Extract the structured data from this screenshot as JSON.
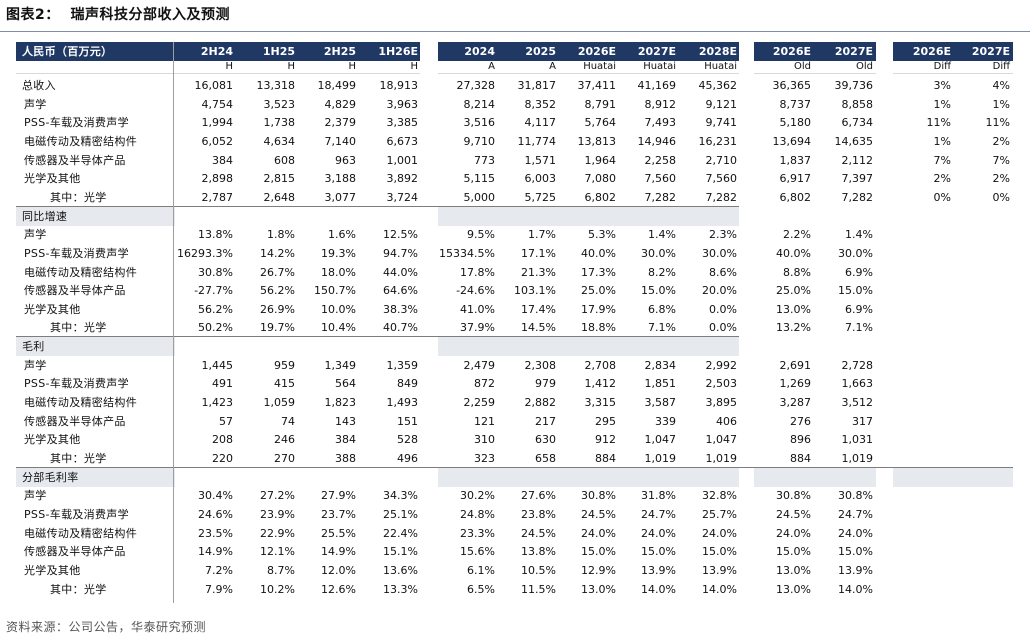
{
  "title": "图表2：  瑞声科技分部收入及预测",
  "source": "资料来源：公司公告，华泰研究预测",
  "header": {
    "label": "人民币（百万元）",
    "columns": [
      "2H24",
      "1H25",
      "2H25",
      "1H26E",
      "2024",
      "2025",
      "2026E",
      "2027E",
      "2028E",
      "2026E",
      "2027E",
      "2026E",
      "2027E"
    ],
    "subheaders": [
      "H",
      "H",
      "H",
      "H",
      "A",
      "A",
      "Huatai",
      "Huatai",
      "Huatai",
      "Old",
      "Old",
      "Diff",
      "Diff"
    ]
  },
  "rows": [
    {
      "label": "总收入",
      "type": "data",
      "indent": 0,
      "values": [
        "16,081",
        "13,318",
        "18,499",
        "18,913",
        "27,328",
        "31,817",
        "37,411",
        "41,169",
        "45,362",
        "36,365",
        "39,736",
        "3%",
        "4%"
      ]
    },
    {
      "label": "声学",
      "type": "data",
      "indent": 1,
      "values": [
        "4,754",
        "3,523",
        "4,829",
        "3,963",
        "8,214",
        "8,352",
        "8,791",
        "8,912",
        "9,121",
        "8,737",
        "8,858",
        "1%",
        "1%"
      ]
    },
    {
      "label": "PSS-车载及消费声学",
      "type": "data",
      "indent": 1,
      "values": [
        "1,994",
        "1,738",
        "2,379",
        "3,385",
        "3,516",
        "4,117",
        "5,764",
        "7,493",
        "9,741",
        "5,180",
        "6,734",
        "11%",
        "11%"
      ]
    },
    {
      "label": "电磁传动及精密结构件",
      "type": "data",
      "indent": 1,
      "values": [
        "6,052",
        "4,634",
        "7,140",
        "6,673",
        "9,710",
        "11,774",
        "13,813",
        "14,946",
        "16,231",
        "13,694",
        "14,635",
        "1%",
        "2%"
      ]
    },
    {
      "label": "传感器及半导体产品",
      "type": "data",
      "indent": 1,
      "values": [
        "384",
        "608",
        "963",
        "1,001",
        "773",
        "1,571",
        "1,964",
        "2,258",
        "2,710",
        "1,837",
        "2,112",
        "7%",
        "7%"
      ]
    },
    {
      "label": "光学及其他",
      "type": "data",
      "indent": 1,
      "values": [
        "2,898",
        "2,815",
        "3,188",
        "3,892",
        "5,115",
        "6,003",
        "7,080",
        "7,560",
        "7,560",
        "6,917",
        "7,397",
        "2%",
        "2%"
      ]
    },
    {
      "label": "其中：光学",
      "type": "data",
      "indent": 2,
      "values": [
        "2,787",
        "2,648",
        "3,077",
        "3,724",
        "5,000",
        "5,725",
        "6,802",
        "7,282",
        "7,282",
        "6,802",
        "7,282",
        "0%",
        "0%"
      ]
    },
    {
      "label": "同比增速",
      "type": "section",
      "span": 9
    },
    {
      "label": "声学",
      "type": "data",
      "indent": 1,
      "values": [
        "13.8%",
        "1.8%",
        "1.6%",
        "12.5%",
        "9.5%",
        "1.7%",
        "5.3%",
        "1.4%",
        "2.3%",
        "2.2%",
        "1.4%",
        "",
        ""
      ]
    },
    {
      "label": "PSS-车载及消费声学",
      "type": "data",
      "indent": 1,
      "values": [
        "16293.3%",
        "14.2%",
        "19.3%",
        "94.7%",
        "15334.5%",
        "17.1%",
        "40.0%",
        "30.0%",
        "30.0%",
        "40.0%",
        "30.0%",
        "",
        ""
      ]
    },
    {
      "label": "电磁传动及精密结构件",
      "type": "data",
      "indent": 1,
      "values": [
        "30.8%",
        "26.7%",
        "18.0%",
        "44.0%",
        "17.8%",
        "21.3%",
        "17.3%",
        "8.2%",
        "8.6%",
        "8.8%",
        "6.9%",
        "",
        ""
      ]
    },
    {
      "label": "传感器及半导体产品",
      "type": "data",
      "indent": 1,
      "values": [
        "-27.7%",
        "56.2%",
        "150.7%",
        "64.6%",
        "-24.6%",
        "103.1%",
        "25.0%",
        "15.0%",
        "20.0%",
        "25.0%",
        "15.0%",
        "",
        ""
      ]
    },
    {
      "label": "光学及其他",
      "type": "data",
      "indent": 1,
      "values": [
        "56.2%",
        "26.9%",
        "10.0%",
        "38.3%",
        "41.0%",
        "17.4%",
        "17.9%",
        "6.8%",
        "0.0%",
        "13.0%",
        "6.9%",
        "",
        ""
      ]
    },
    {
      "label": "其中：光学",
      "type": "data",
      "indent": 2,
      "values": [
        "50.2%",
        "19.7%",
        "10.4%",
        "40.7%",
        "37.9%",
        "14.5%",
        "18.8%",
        "7.1%",
        "0.0%",
        "13.2%",
        "7.1%",
        "",
        ""
      ]
    },
    {
      "label": "毛利",
      "type": "section",
      "span": 9
    },
    {
      "label": "声学",
      "type": "data",
      "indent": 1,
      "values": [
        "1,445",
        "959",
        "1,349",
        "1,359",
        "2,479",
        "2,308",
        "2,708",
        "2,834",
        "2,992",
        "2,691",
        "2,728",
        "",
        ""
      ]
    },
    {
      "label": "PSS-车载及消费声学",
      "type": "data",
      "indent": 1,
      "values": [
        "491",
        "415",
        "564",
        "849",
        "872",
        "979",
        "1,412",
        "1,851",
        "2,503",
        "1,269",
        "1,663",
        "",
        ""
      ]
    },
    {
      "label": "电磁传动及精密结构件",
      "type": "data",
      "indent": 1,
      "values": [
        "1,423",
        "1,059",
        "1,823",
        "1,493",
        "2,259",
        "2,882",
        "3,315",
        "3,587",
        "3,895",
        "3,287",
        "3,512",
        "",
        ""
      ]
    },
    {
      "label": "传感器及半导体产品",
      "type": "data",
      "indent": 1,
      "values": [
        "57",
        "74",
        "143",
        "151",
        "121",
        "217",
        "295",
        "339",
        "406",
        "276",
        "317",
        "",
        ""
      ]
    },
    {
      "label": "光学及其他",
      "type": "data",
      "indent": 1,
      "values": [
        "208",
        "246",
        "384",
        "528",
        "310",
        "630",
        "912",
        "1,047",
        "1,047",
        "896",
        "1,031",
        "",
        ""
      ]
    },
    {
      "label": "其中：光学",
      "type": "data",
      "indent": 2,
      "values": [
        "220",
        "270",
        "388",
        "496",
        "323",
        "658",
        "884",
        "1,019",
        "1,019",
        "884",
        "1,019",
        "",
        ""
      ]
    },
    {
      "label": "分部毛利率",
      "type": "section",
      "span": 13
    },
    {
      "label": "声学",
      "type": "data",
      "indent": 1,
      "values": [
        "30.4%",
        "27.2%",
        "27.9%",
        "34.3%",
        "30.2%",
        "27.6%",
        "30.8%",
        "31.8%",
        "32.8%",
        "30.8%",
        "30.8%",
        "",
        ""
      ]
    },
    {
      "label": "PSS-车载及消费声学",
      "type": "data",
      "indent": 1,
      "values": [
        "24.6%",
        "23.9%",
        "23.7%",
        "25.1%",
        "24.8%",
        "23.8%",
        "24.5%",
        "24.7%",
        "25.7%",
        "24.5%",
        "24.7%",
        "",
        ""
      ]
    },
    {
      "label": "电磁传动及精密结构件",
      "type": "data",
      "indent": 1,
      "values": [
        "23.5%",
        "22.9%",
        "25.5%",
        "22.4%",
        "23.3%",
        "24.5%",
        "24.0%",
        "24.0%",
        "24.0%",
        "24.0%",
        "24.0%",
        "",
        ""
      ]
    },
    {
      "label": "传感器及半导体产品",
      "type": "data",
      "indent": 1,
      "values": [
        "14.9%",
        "12.1%",
        "14.9%",
        "15.1%",
        "15.6%",
        "13.8%",
        "15.0%",
        "15.0%",
        "15.0%",
        "15.0%",
        "15.0%",
        "",
        ""
      ]
    },
    {
      "label": "光学及其他",
      "type": "data",
      "indent": 1,
      "values": [
        "7.2%",
        "8.7%",
        "12.0%",
        "13.6%",
        "6.1%",
        "10.5%",
        "12.9%",
        "13.9%",
        "13.9%",
        "13.0%",
        "13.9%",
        "",
        ""
      ]
    },
    {
      "label": "其中：光学",
      "type": "data",
      "indent": 2,
      "values": [
        "7.9%",
        "10.2%",
        "12.6%",
        "13.3%",
        "6.5%",
        "11.5%",
        "13.0%",
        "14.0%",
        "14.0%",
        "13.0%",
        "14.0%",
        "",
        ""
      ]
    }
  ]
}
